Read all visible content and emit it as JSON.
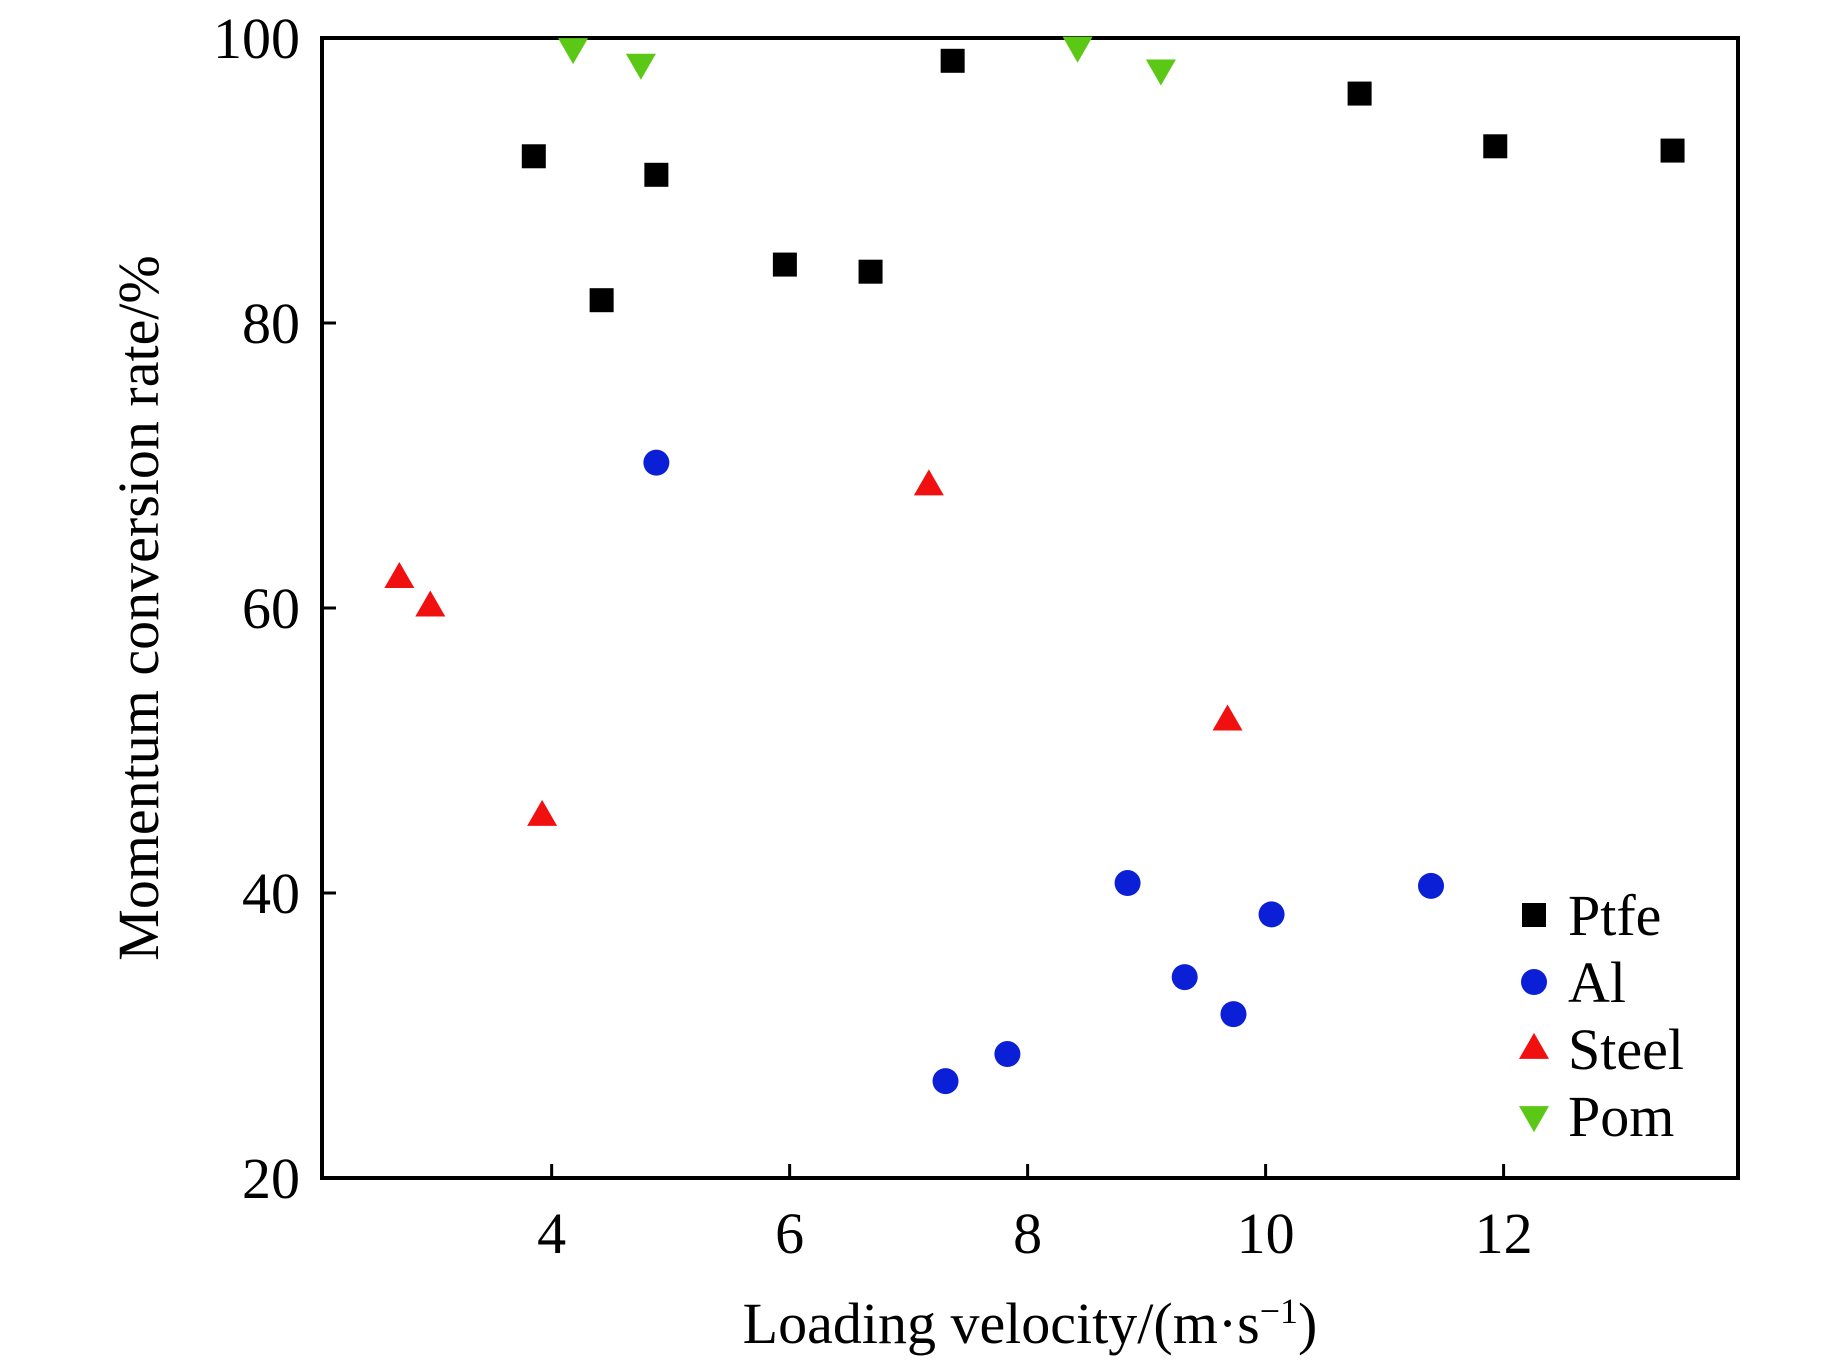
{
  "chart_data": {
    "type": "scatter",
    "title": "",
    "xlabel": "Loading velocity/(m·s",
    "xlabel_superscript": "−1",
    "xlabel_suffix": ")",
    "ylabel": "Momentum conversion rate/%",
    "xlim": [
      2.07,
      13.97
    ],
    "ylim": [
      20,
      100
    ],
    "xticks": [
      4,
      6,
      8,
      10,
      12
    ],
    "xtick_labels": [
      "4",
      "6",
      "8",
      "10",
      "12"
    ],
    "yticks": [
      20,
      40,
      60,
      80,
      100
    ],
    "ytick_labels": [
      "20",
      "40",
      "60",
      "80",
      "100"
    ],
    "grid": false,
    "legend_position": "bottom-right",
    "series": [
      {
        "name": "Ptfe",
        "marker": "square",
        "color": "#000000",
        "points": [
          {
            "x": 3.85,
            "y": 91.7
          },
          {
            "x": 4.42,
            "y": 81.6
          },
          {
            "x": 4.88,
            "y": 90.4
          },
          {
            "x": 5.96,
            "y": 84.1
          },
          {
            "x": 6.68,
            "y": 83.6
          },
          {
            "x": 7.37,
            "y": 98.4
          },
          {
            "x": 10.79,
            "y": 96.1
          },
          {
            "x": 11.93,
            "y": 92.4
          },
          {
            "x": 13.42,
            "y": 92.1
          }
        ]
      },
      {
        "name": "Al",
        "marker": "circle",
        "color": "#0a1fd6",
        "points": [
          {
            "x": 4.88,
            "y": 70.2
          },
          {
            "x": 7.31,
            "y": 26.8
          },
          {
            "x": 7.83,
            "y": 28.7
          },
          {
            "x": 8.84,
            "y": 40.7
          },
          {
            "x": 9.32,
            "y": 34.1
          },
          {
            "x": 9.73,
            "y": 31.5
          },
          {
            "x": 10.05,
            "y": 38.5
          },
          {
            "x": 11.39,
            "y": 40.5
          }
        ]
      },
      {
        "name": "Steel",
        "marker": "triangle-up",
        "color": "#f01010",
        "points": [
          {
            "x": 2.72,
            "y": 62.1
          },
          {
            "x": 2.98,
            "y": 60.1
          },
          {
            "x": 3.92,
            "y": 45.4
          },
          {
            "x": 7.17,
            "y": 68.6
          },
          {
            "x": 9.68,
            "y": 52.1
          }
        ]
      },
      {
        "name": "Pom",
        "marker": "triangle-down",
        "color": "#5ac814",
        "points": [
          {
            "x": 4.18,
            "y": 99.3
          },
          {
            "x": 4.75,
            "y": 98.2
          },
          {
            "x": 8.42,
            "y": 99.4
          },
          {
            "x": 9.12,
            "y": 97.8
          }
        ]
      }
    ]
  }
}
